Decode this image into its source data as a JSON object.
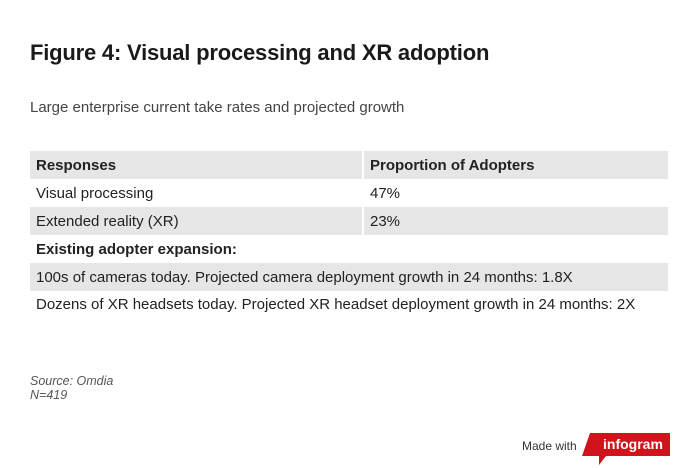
{
  "title": "Figure 4: Visual processing and XR adoption",
  "subtitle": "Large enterprise current take rates and projected growth",
  "table": {
    "headers": [
      "Responses",
      "Proportion of Adopters"
    ],
    "rows": [
      [
        "Visual processing",
        "47%"
      ],
      [
        "Extended reality (XR)",
        "23%"
      ]
    ],
    "section_label": "Existing adopter expansion:",
    "notes": [
      "100s of cameras today. Projected camera deployment growth in 24 months: 1.8X",
      "Dozens of XR headsets today. Projected XR headset deployment growth in 24 months: 2X"
    ]
  },
  "source": {
    "line1": "Source: Omdia",
    "line2": "N=419"
  },
  "footer": {
    "made_with": "Made with",
    "brand": "infogram",
    "brand_color": "#d0141c"
  }
}
